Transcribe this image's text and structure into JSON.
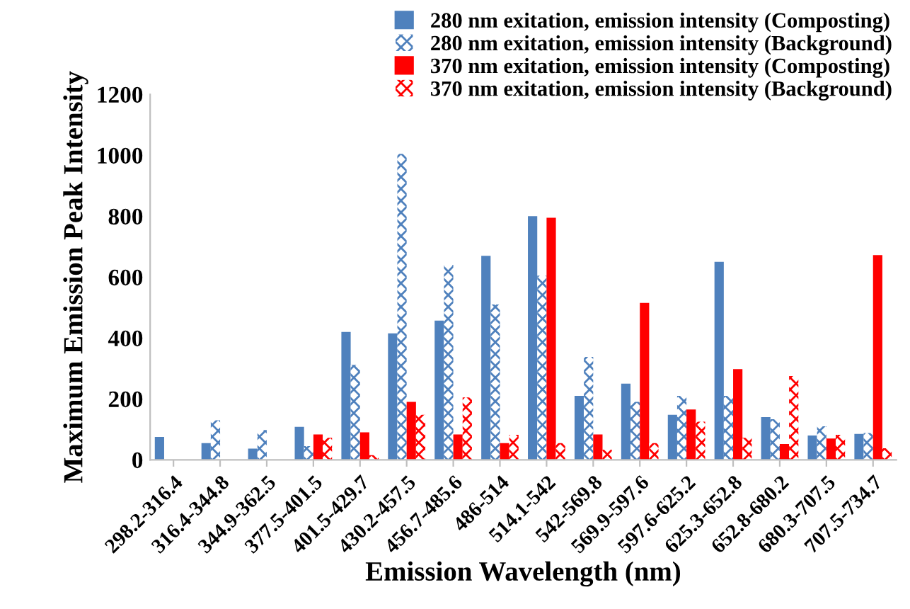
{
  "chart_data": {
    "type": "bar",
    "xlabel": "Emission Wavelength (nm)",
    "ylabel": "Maximum Emission Peak Intensity",
    "categories": [
      "298.2-316.4",
      "316.4-344.8",
      "344.9-362.5",
      "377.5-401.5",
      "401.5-429.7",
      "430.2-457.5",
      "456.7-485.6",
      "486-514",
      "514.1-542",
      "542-569.8",
      "569.9-597.6",
      "597.6-625.2",
      "625.3-652.8",
      "652.8-680.2",
      "680.3-707.5",
      "707.5-734.7"
    ],
    "series": [
      {
        "name": "280 nm exitation, emission intensity (Composting)",
        "color": "#4f81bd",
        "values": [
          75,
          55,
          37,
          108,
          420,
          415,
          457,
          670,
          800,
          210,
          250,
          148,
          650,
          140,
          80,
          85
        ]
      },
      {
        "name": "280 nm exitation, emission intensity (Background)",
        "color": "#4f81bd",
        "values": [
          null,
          130,
          98,
          45,
          312,
          1005,
          640,
          510,
          605,
          338,
          190,
          210,
          210,
          133,
          110,
          88
        ]
      },
      {
        "name": "370 nm exitation, emission intensity (Composting)",
        "color": "#ff0000",
        "values": [
          null,
          null,
          null,
          83,
          90,
          190,
          83,
          55,
          795,
          83,
          515,
          165,
          298,
          52,
          70,
          672
        ]
      },
      {
        "name": "370 nm exitation, emission intensity (Background)",
        "color": "#ff0000",
        "values": [
          null,
          null,
          null,
          72,
          15,
          148,
          205,
          82,
          55,
          33,
          55,
          125,
          72,
          275,
          82,
          38
        ]
      }
    ],
    "ylim": [
      0,
      1200
    ],
    "yticks": [
      0,
      200,
      400,
      600,
      800,
      1000,
      1200
    ],
    "grid": false,
    "legend": "top right"
  }
}
